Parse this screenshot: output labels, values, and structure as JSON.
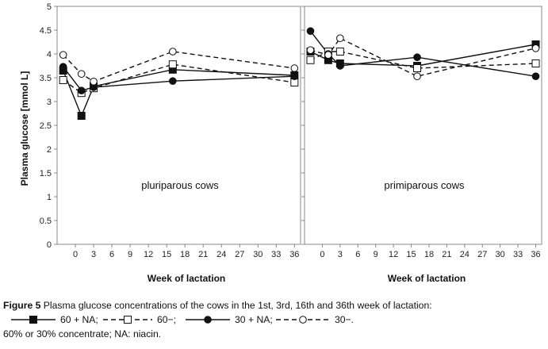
{
  "chart_data": [
    {
      "type": "line",
      "panel_label": "pluriparous cows",
      "xlabel": "Week of lactation",
      "ylabel": "Plasma glucose [mmol L]",
      "ylim": [
        0,
        5
      ],
      "yticks": [
        "0",
        "0.5",
        "1",
        "1.5",
        "2",
        "2.5",
        "3",
        "3.5",
        "4",
        "4.5",
        "5"
      ],
      "xticks": [
        "0",
        "3",
        "6",
        "9",
        "12",
        "15",
        "18",
        "21",
        "24",
        "27",
        "30",
        "33",
        "36"
      ],
      "xlim": [
        -3,
        37
      ],
      "series": [
        {
          "id": "60na",
          "x": [
            -2,
            1,
            3,
            16,
            36
          ],
          "y": [
            3.65,
            2.7,
            3.32,
            3.67,
            3.55
          ]
        },
        {
          "id": "60",
          "x": [
            -2,
            1,
            3,
            16,
            36
          ],
          "y": [
            3.45,
            3.18,
            3.28,
            3.78,
            3.4
          ]
        },
        {
          "id": "30na",
          "x": [
            -2,
            1,
            3,
            16,
            36
          ],
          "y": [
            3.73,
            3.23,
            3.3,
            3.43,
            3.53
          ]
        },
        {
          "id": "30",
          "x": [
            -2,
            1,
            3,
            16,
            36
          ],
          "y": [
            3.98,
            3.58,
            3.42,
            4.05,
            3.7
          ]
        }
      ]
    },
    {
      "type": "line",
      "panel_label": "primiparous cows",
      "xlabel": "Week of lactation",
      "ylim": [
        0,
        5
      ],
      "xticks": [
        "0",
        "3",
        "6",
        "9",
        "12",
        "15",
        "18",
        "21",
        "24",
        "27",
        "30",
        "33",
        "36"
      ],
      "xlim": [
        -3,
        37
      ],
      "series": [
        {
          "id": "60na",
          "x": [
            -2,
            1,
            3,
            16,
            36
          ],
          "y": [
            4.05,
            3.87,
            3.8,
            3.75,
            4.2
          ]
        },
        {
          "id": "60",
          "x": [
            -2,
            1,
            3,
            16,
            36
          ],
          "y": [
            3.87,
            4.05,
            4.05,
            3.7,
            3.8
          ]
        },
        {
          "id": "30na",
          "x": [
            -2,
            1,
            3,
            16,
            36
          ],
          "y": [
            4.48,
            4.0,
            3.75,
            3.93,
            3.53
          ]
        },
        {
          "id": "30",
          "x": [
            -2,
            1,
            3,
            16,
            36
          ],
          "y": [
            4.08,
            3.98,
            4.33,
            3.53,
            4.12
          ]
        }
      ]
    }
  ],
  "legend": [
    {
      "id": "60na",
      "label": "60 + NA;",
      "marker": "square",
      "filled": true,
      "dashed": false
    },
    {
      "id": "60",
      "label": "60−;",
      "marker": "square",
      "filled": false,
      "dashed": true
    },
    {
      "id": "30na",
      "label": "30 + NA;",
      "marker": "circle",
      "filled": true,
      "dashed": false
    },
    {
      "id": "30",
      "label": "30−.",
      "marker": "circle",
      "filled": false,
      "dashed": true
    }
  ],
  "caption": {
    "figure_label": "Figure 5",
    "text": "Plasma glucose concentrations of the cows in the 1st, 3rd, 16th and 36th week of lactation:",
    "note": "60% or 30% concentrate; NA: niacin."
  }
}
